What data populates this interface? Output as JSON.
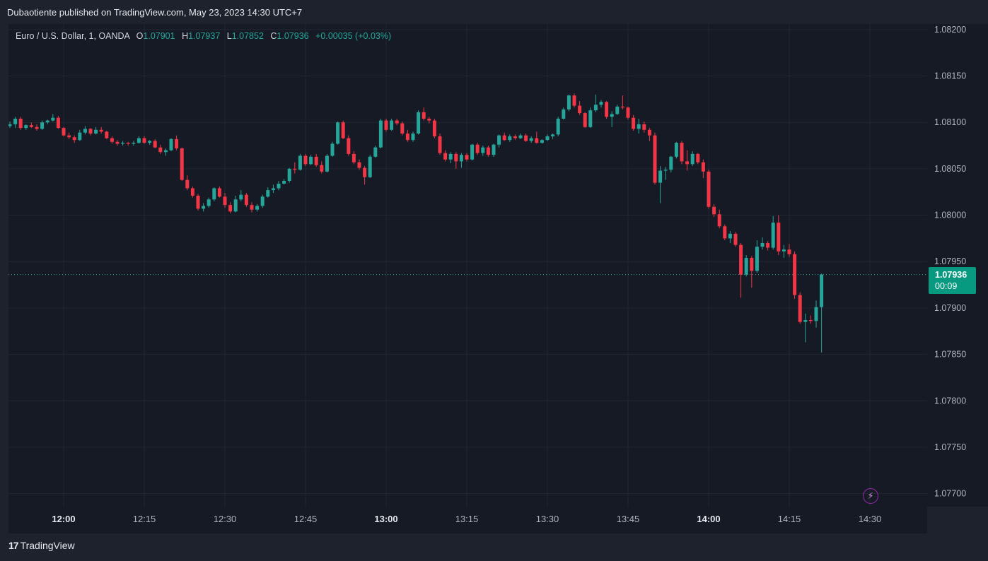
{
  "header": {
    "published_text": "Dubaotiente published on TradingView.com, May 23, 2023 14:30 UTC+7"
  },
  "legend": {
    "symbol": "Euro / U.S. Dollar, 1, OANDA",
    "open_label": "O",
    "open": "1.07901",
    "high_label": "H",
    "high": "1.07937",
    "low_label": "L",
    "low": "1.07852",
    "close_label": "C",
    "close": "1.07936",
    "change": "+0.00035 (+0.03%)"
  },
  "last_price": {
    "value": "1.07936",
    "countdown": "00:09"
  },
  "footer": {
    "brand": "TradingView",
    "logo_text": "17"
  },
  "icons": {
    "lightning": "lightning-icon"
  },
  "colors": {
    "up": "#26a69a",
    "down": "#f23645",
    "background": "#161a25",
    "grid": "#232734",
    "last_price_tag": "#089981"
  },
  "chart_data": {
    "type": "candlestick",
    "symbol": "EURUSD",
    "interval": "1",
    "ylim": [
      1.07686,
      1.08206
    ],
    "y_ticks": [
      "1.08200",
      "1.08150",
      "1.08100",
      "1.08050",
      "1.08000",
      "1.07950",
      "1.07900",
      "1.07850",
      "1.07800",
      "1.07750",
      "1.07700"
    ],
    "x_ticks": [
      {
        "label": "12:00",
        "bold": true
      },
      {
        "label": "12:15",
        "bold": false
      },
      {
        "label": "12:30",
        "bold": false
      },
      {
        "label": "12:45",
        "bold": false
      },
      {
        "label": "13:00",
        "bold": true
      },
      {
        "label": "13:15",
        "bold": false
      },
      {
        "label": "13:30",
        "bold": false
      },
      {
        "label": "13:45",
        "bold": false
      },
      {
        "label": "14:00",
        "bold": true
      },
      {
        "label": "14:15",
        "bold": false
      },
      {
        "label": "14:30",
        "bold": false
      }
    ],
    "x_tick_minute_offsets": [
      0,
      15,
      30,
      45,
      60,
      75,
      90,
      105,
      120,
      135,
      150
    ],
    "first_bar_minute_offset": -10,
    "last_price_line": 1.07936,
    "ohlc": [
      [
        1.08096,
        1.08101,
        1.08094,
        1.08098
      ],
      [
        1.08098,
        1.08106,
        1.08094,
        1.08104
      ],
      [
        1.08104,
        1.08106,
        1.08092,
        1.08094
      ],
      [
        1.08094,
        1.08098,
        1.08092,
        1.08097
      ],
      [
        1.08097,
        1.081,
        1.08094,
        1.08095
      ],
      [
        1.08095,
        1.08098,
        1.08091,
        1.08093
      ],
      [
        1.08093,
        1.08102,
        1.08092,
        1.081
      ],
      [
        1.081,
        1.08103,
        1.08098,
        1.08102
      ],
      [
        1.08102,
        1.08109,
        1.08101,
        1.08105
      ],
      [
        1.08105,
        1.08107,
        1.08093,
        1.08094
      ],
      [
        1.08094,
        1.08095,
        1.08085,
        1.08086
      ],
      [
        1.08086,
        1.08089,
        1.08082,
        1.08084
      ],
      [
        1.08084,
        1.08086,
        1.08078,
        1.08081
      ],
      [
        1.08081,
        1.08092,
        1.0808,
        1.08089
      ],
      [
        1.08089,
        1.08096,
        1.08087,
        1.08093
      ],
      [
        1.08093,
        1.08094,
        1.08086,
        1.08088
      ],
      [
        1.08088,
        1.08095,
        1.08087,
        1.08092
      ],
      [
        1.08092,
        1.08095,
        1.08088,
        1.0809
      ],
      [
        1.0809,
        1.08091,
        1.08082,
        1.08083
      ],
      [
        1.08083,
        1.08085,
        1.08077,
        1.08079
      ],
      [
        1.08079,
        1.08081,
        1.08075,
        1.08077
      ],
      [
        1.08077,
        1.0808,
        1.08075,
        1.08078
      ],
      [
        1.08078,
        1.08079,
        1.08075,
        1.08077
      ],
      [
        1.08077,
        1.0808,
        1.08075,
        1.08078
      ],
      [
        1.08078,
        1.08085,
        1.08077,
        1.08083
      ],
      [
        1.08083,
        1.08085,
        1.08077,
        1.08078
      ],
      [
        1.08078,
        1.08081,
        1.08076,
        1.0808
      ],
      [
        1.0808,
        1.08082,
        1.08072,
        1.08073
      ],
      [
        1.08073,
        1.08076,
        1.08066,
        1.08068
      ],
      [
        1.08068,
        1.08072,
        1.08064,
        1.0807
      ],
      [
        1.0807,
        1.08083,
        1.08069,
        1.08082
      ],
      [
        1.08082,
        1.08086,
        1.0807,
        1.08072
      ],
      [
        1.08072,
        1.08073,
        1.08037,
        1.08038
      ],
      [
        1.08038,
        1.08043,
        1.08027,
        1.08029
      ],
      [
        1.08029,
        1.08031,
        1.08019,
        1.08021
      ],
      [
        1.08021,
        1.08023,
        1.08005,
        1.08007
      ],
      [
        1.08007,
        1.08013,
        1.08004,
        1.0801
      ],
      [
        1.0801,
        1.08019,
        1.08008,
        1.08017
      ],
      [
        1.08017,
        1.0803,
        1.08015,
        1.08029
      ],
      [
        1.08029,
        1.08031,
        1.08019,
        1.0802
      ],
      [
        1.0802,
        1.08024,
        1.08008,
        1.08011
      ],
      [
        1.08011,
        1.08014,
        1.08002,
        1.08004
      ],
      [
        1.08004,
        1.08021,
        1.08003,
        1.08017
      ],
      [
        1.08017,
        1.08027,
        1.08015,
        1.08022
      ],
      [
        1.08022,
        1.08024,
        1.08009,
        1.08011
      ],
      [
        1.08011,
        1.08014,
        1.08003,
        1.08006
      ],
      [
        1.08006,
        1.08012,
        1.08004,
        1.0801
      ],
      [
        1.0801,
        1.08022,
        1.08008,
        1.0802
      ],
      [
        1.0802,
        1.0803,
        1.08019,
        1.08027
      ],
      [
        1.08027,
        1.08033,
        1.08024,
        1.08029
      ],
      [
        1.08029,
        1.08037,
        1.08027,
        1.08034
      ],
      [
        1.08034,
        1.08039,
        1.08033,
        1.08037
      ],
      [
        1.08037,
        1.08051,
        1.08035,
        1.0805
      ],
      [
        1.0805,
        1.08057,
        1.08045,
        1.08049
      ],
      [
        1.08049,
        1.08066,
        1.08048,
        1.08064
      ],
      [
        1.08064,
        1.08066,
        1.08053,
        1.08055
      ],
      [
        1.08055,
        1.08065,
        1.08054,
        1.08063
      ],
      [
        1.08063,
        1.08066,
        1.08052,
        1.08054
      ],
      [
        1.08054,
        1.08058,
        1.08045,
        1.08047
      ],
      [
        1.08047,
        1.08066,
        1.08046,
        1.08064
      ],
      [
        1.08064,
        1.08079,
        1.08063,
        1.08077
      ],
      [
        1.08077,
        1.08101,
        1.08076,
        1.081
      ],
      [
        1.081,
        1.08102,
        1.08082,
        1.08083
      ],
      [
        1.08083,
        1.08086,
        1.08064,
        1.08066
      ],
      [
        1.08066,
        1.08069,
        1.08055,
        1.08057
      ],
      [
        1.08057,
        1.0806,
        1.08049,
        1.08051
      ],
      [
        1.08051,
        1.08053,
        1.08033,
        1.08041
      ],
      [
        1.08041,
        1.08065,
        1.0804,
        1.08063
      ],
      [
        1.08063,
        1.08075,
        1.08062,
        1.08073
      ],
      [
        1.08073,
        1.08104,
        1.08072,
        1.08102
      ],
      [
        1.08102,
        1.08104,
        1.0809,
        1.08092
      ],
      [
        1.08092,
        1.08104,
        1.08091,
        1.08102
      ],
      [
        1.08102,
        1.08104,
        1.08097,
        1.08099
      ],
      [
        1.08099,
        1.08101,
        1.08086,
        1.08088
      ],
      [
        1.08088,
        1.08092,
        1.08079,
        1.08081
      ],
      [
        1.08081,
        1.0809,
        1.08079,
        1.08088
      ],
      [
        1.08088,
        1.08113,
        1.08087,
        1.08111
      ],
      [
        1.08111,
        1.08116,
        1.08102,
        1.08104
      ],
      [
        1.08104,
        1.08106,
        1.08099,
        1.08102
      ],
      [
        1.08102,
        1.08104,
        1.08083,
        1.08085
      ],
      [
        1.08085,
        1.08088,
        1.08065,
        1.08067
      ],
      [
        1.08067,
        1.0807,
        1.08058,
        1.0806
      ],
      [
        1.0806,
        1.08068,
        1.08056,
        1.08066
      ],
      [
        1.08066,
        1.08068,
        1.0805,
        1.08058
      ],
      [
        1.08058,
        1.08067,
        1.08051,
        1.08065
      ],
      [
        1.08065,
        1.08067,
        1.08058,
        1.0806
      ],
      [
        1.0806,
        1.08077,
        1.08059,
        1.08076
      ],
      [
        1.08076,
        1.08078,
        1.08065,
        1.08067
      ],
      [
        1.08067,
        1.08075,
        1.08064,
        1.08073
      ],
      [
        1.08073,
        1.08075,
        1.08063,
        1.08065
      ],
      [
        1.08065,
        1.08077,
        1.08063,
        1.08076
      ],
      [
        1.08076,
        1.08087,
        1.08073,
        1.08086
      ],
      [
        1.08086,
        1.08089,
        1.0808,
        1.08081
      ],
      [
        1.08081,
        1.08087,
        1.08079,
        1.08085
      ],
      [
        1.08085,
        1.08087,
        1.08081,
        1.08083
      ],
      [
        1.08083,
        1.08088,
        1.08082,
        1.08086
      ],
      [
        1.08086,
        1.08088,
        1.08079,
        1.0808
      ],
      [
        1.0808,
        1.08085,
        1.08078,
        1.08083
      ],
      [
        1.08083,
        1.0809,
        1.08077,
        1.08078
      ],
      [
        1.08078,
        1.08082,
        1.08077,
        1.08081
      ],
      [
        1.08081,
        1.08087,
        1.0808,
        1.08085
      ],
      [
        1.08085,
        1.08088,
        1.08082,
        1.08087
      ],
      [
        1.08087,
        1.08106,
        1.08085,
        1.08104
      ],
      [
        1.08104,
        1.08116,
        1.08103,
        1.08114
      ],
      [
        1.08114,
        1.0813,
        1.08112,
        1.08129
      ],
      [
        1.08129,
        1.08131,
        1.08116,
        1.08118
      ],
      [
        1.08118,
        1.08123,
        1.08108,
        1.0811
      ],
      [
        1.0811,
        1.08111,
        1.08094,
        1.08095
      ],
      [
        1.08095,
        1.08116,
        1.08094,
        1.08113
      ],
      [
        1.08113,
        1.0813,
        1.08111,
        1.08119
      ],
      [
        1.08119,
        1.08124,
        1.08116,
        1.08122
      ],
      [
        1.08122,
        1.08123,
        1.08104,
        1.08106
      ],
      [
        1.08106,
        1.08112,
        1.08095,
        1.08109
      ],
      [
        1.08109,
        1.08119,
        1.08108,
        1.08117
      ],
      [
        1.08117,
        1.08129,
        1.08114,
        1.08116
      ],
      [
        1.08116,
        1.08117,
        1.08103,
        1.08105
      ],
      [
        1.08105,
        1.08108,
        1.08091,
        1.08093
      ],
      [
        1.08093,
        1.08104,
        1.08088,
        1.08098
      ],
      [
        1.08098,
        1.08101,
        1.08089,
        1.08092
      ],
      [
        1.08092,
        1.08094,
        1.0808,
        1.08086
      ],
      [
        1.08086,
        1.08089,
        1.08033,
        1.08035
      ],
      [
        1.08035,
        1.08053,
        1.08013,
        1.08048
      ],
      [
        1.08048,
        1.08052,
        1.08038,
        1.08049
      ],
      [
        1.08049,
        1.08064,
        1.08046,
        1.08063
      ],
      [
        1.08063,
        1.08079,
        1.08061,
        1.08078
      ],
      [
        1.08078,
        1.0808,
        1.08055,
        1.08058
      ],
      [
        1.08058,
        1.0807,
        1.08048,
        1.08055
      ],
      [
        1.08055,
        1.08069,
        1.08053,
        1.08066
      ],
      [
        1.08066,
        1.08067,
        1.08055,
        1.08057
      ],
      [
        1.08057,
        1.0806,
        1.0804,
        1.08047
      ],
      [
        1.08047,
        1.08049,
        1.08007,
        1.08009
      ],
      [
        1.08009,
        1.08012,
        1.07998,
        1.08001
      ],
      [
        1.08001,
        1.08006,
        1.07986,
        1.07988
      ],
      [
        1.07988,
        1.0799,
        1.07973,
        1.07975
      ],
      [
        1.07975,
        1.07983,
        1.0797,
        1.0798
      ],
      [
        1.0798,
        1.07982,
        1.07966,
        1.07968
      ],
      [
        1.07968,
        1.0797,
        1.07911,
        1.07936
      ],
      [
        1.07936,
        1.07957,
        1.07934,
        1.07954
      ],
      [
        1.07954,
        1.07956,
        1.07922,
        1.0794
      ],
      [
        1.0794,
        1.07973,
        1.07938,
        1.07966
      ],
      [
        1.07966,
        1.07976,
        1.07963,
        1.0797
      ],
      [
        1.0797,
        1.07972,
        1.07962,
        1.07965
      ],
      [
        1.07965,
        1.07999,
        1.07963,
        1.07992
      ],
      [
        1.07992,
        1.08,
        1.07957,
        1.07961
      ],
      [
        1.07961,
        1.07968,
        1.07954,
        1.07963
      ],
      [
        1.07963,
        1.07969,
        1.07955,
        1.07958
      ],
      [
        1.07958,
        1.07961,
        1.0791,
        1.07914
      ],
      [
        1.07914,
        1.07917,
        1.07883,
        1.07885
      ],
      [
        1.07885,
        1.07894,
        1.07863,
        1.07887
      ],
      [
        1.07887,
        1.07892,
        1.07883,
        1.07886
      ],
      [
        1.07886,
        1.07908,
        1.07879,
        1.07901
      ],
      [
        1.07901,
        1.07937,
        1.07852,
        1.07936
      ]
    ]
  }
}
